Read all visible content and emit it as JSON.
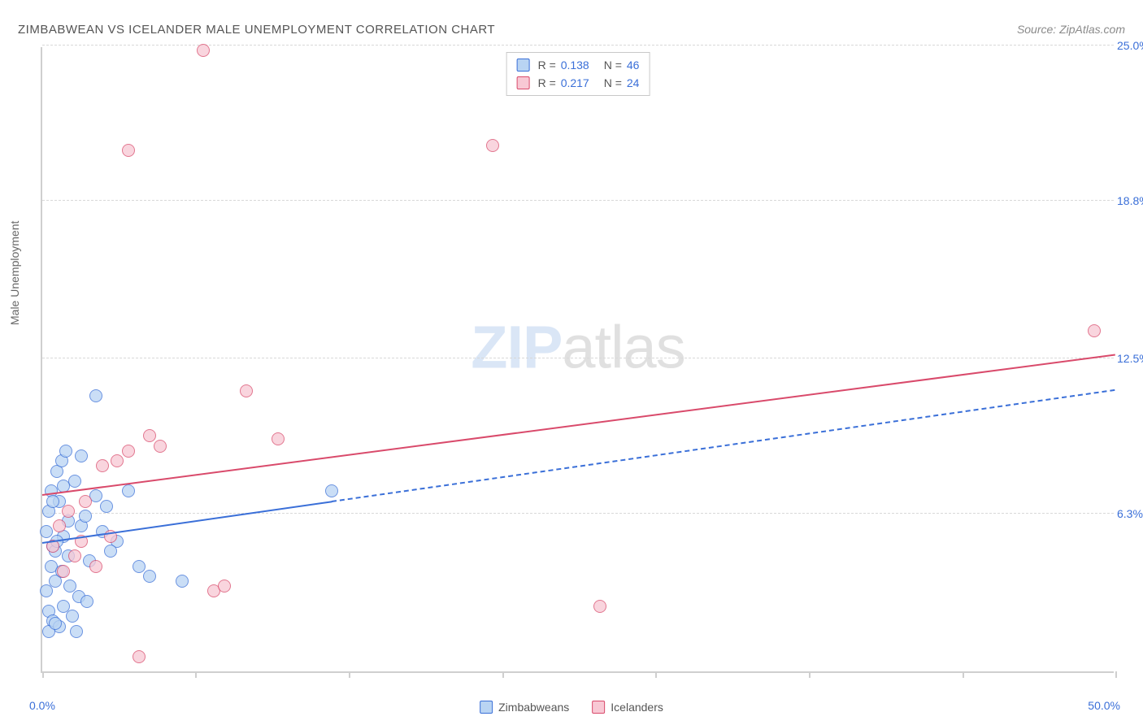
{
  "title": "ZIMBABWEAN VS ICELANDER MALE UNEMPLOYMENT CORRELATION CHART",
  "source": "Source: ZipAtlas.com",
  "yaxis_title": "Male Unemployment",
  "watermark": {
    "zip": "ZIP",
    "atlas": "atlas"
  },
  "chart": {
    "type": "scatter",
    "xlim": [
      0,
      50
    ],
    "ylim": [
      0,
      25
    ],
    "x_min_label": "0.0%",
    "x_max_label": "50.0%",
    "grid_color": "#d8d8d8",
    "axis_color": "#cfcfcf",
    "background": "#ffffff",
    "ytick_labels": [
      "6.3%",
      "12.5%",
      "18.8%",
      "25.0%"
    ],
    "ytick_values": [
      6.3,
      12.5,
      18.8,
      25.0
    ],
    "xtick_values": [
      0,
      7.14,
      14.28,
      21.43,
      28.57,
      35.71,
      42.86,
      50
    ],
    "marker_radius": 8,
    "marker_border": 1,
    "series": [
      {
        "name": "Zimbabweans",
        "fill": "#b9d4f3",
        "stroke": "#3a6fd8",
        "opacity": 0.75,
        "R": "0.138",
        "N": "46",
        "trend": {
          "x0": 0,
          "y0": 5.1,
          "x1": 50,
          "y1": 11.2,
          "solid_until_x": 13.5
        },
        "points": [
          [
            0.2,
            5.6
          ],
          [
            0.3,
            6.4
          ],
          [
            0.5,
            5.0
          ],
          [
            0.4,
            7.2
          ],
          [
            0.8,
            6.8
          ],
          [
            1.0,
            5.4
          ],
          [
            0.6,
            4.8
          ],
          [
            1.2,
            6.0
          ],
          [
            0.3,
            2.4
          ],
          [
            0.5,
            2.0
          ],
          [
            0.8,
            1.8
          ],
          [
            1.0,
            2.6
          ],
          [
            1.4,
            2.2
          ],
          [
            0.2,
            3.2
          ],
          [
            0.6,
            3.6
          ],
          [
            1.6,
            1.6
          ],
          [
            0.4,
            4.2
          ],
          [
            1.2,
            4.6
          ],
          [
            1.8,
            5.8
          ],
          [
            0.7,
            8.0
          ],
          [
            0.9,
            8.4
          ],
          [
            1.1,
            8.8
          ],
          [
            2.5,
            11.0
          ],
          [
            2.0,
            6.2
          ],
          [
            2.5,
            7.0
          ],
          [
            3.0,
            6.6
          ],
          [
            3.5,
            5.2
          ],
          [
            4.0,
            7.2
          ],
          [
            5.0,
            3.8
          ],
          [
            4.5,
            4.2
          ],
          [
            6.5,
            3.6
          ],
          [
            2.2,
            4.4
          ],
          [
            2.8,
            5.6
          ],
          [
            3.2,
            4.8
          ],
          [
            1.5,
            7.6
          ],
          [
            1.8,
            8.6
          ],
          [
            0.9,
            4.0
          ],
          [
            1.3,
            3.4
          ],
          [
            1.7,
            3.0
          ],
          [
            2.1,
            2.8
          ],
          [
            0.5,
            6.8
          ],
          [
            0.7,
            5.2
          ],
          [
            0.3,
            1.6
          ],
          [
            0.6,
            1.9
          ],
          [
            1.0,
            7.4
          ],
          [
            13.5,
            7.2
          ]
        ]
      },
      {
        "name": "Icelanders",
        "fill": "#f8c8d4",
        "stroke": "#d94a6b",
        "opacity": 0.75,
        "R": "0.217",
        "N": "24",
        "trend": {
          "x0": 0,
          "y0": 7.0,
          "x1": 50,
          "y1": 12.6,
          "solid_until_x": 50
        },
        "points": [
          [
            0.5,
            5.0
          ],
          [
            1.2,
            6.4
          ],
          [
            1.5,
            4.6
          ],
          [
            2.0,
            6.8
          ],
          [
            1.8,
            5.2
          ],
          [
            2.8,
            8.2
          ],
          [
            3.5,
            8.4
          ],
          [
            4.0,
            8.8
          ],
          [
            5.0,
            9.4
          ],
          [
            5.5,
            9.0
          ],
          [
            8.0,
            3.2
          ],
          [
            8.5,
            3.4
          ],
          [
            11.0,
            9.3
          ],
          [
            4.5,
            0.6
          ],
          [
            4.0,
            20.8
          ],
          [
            7.5,
            24.8
          ],
          [
            9.5,
            11.2
          ],
          [
            26.0,
            2.6
          ],
          [
            49.0,
            13.6
          ],
          [
            21.0,
            21.0
          ],
          [
            2.5,
            4.2
          ],
          [
            3.2,
            5.4
          ],
          [
            1.0,
            4.0
          ],
          [
            0.8,
            5.8
          ]
        ]
      }
    ]
  },
  "legend_top": {
    "r_label": "R =",
    "n_label": "N ="
  }
}
